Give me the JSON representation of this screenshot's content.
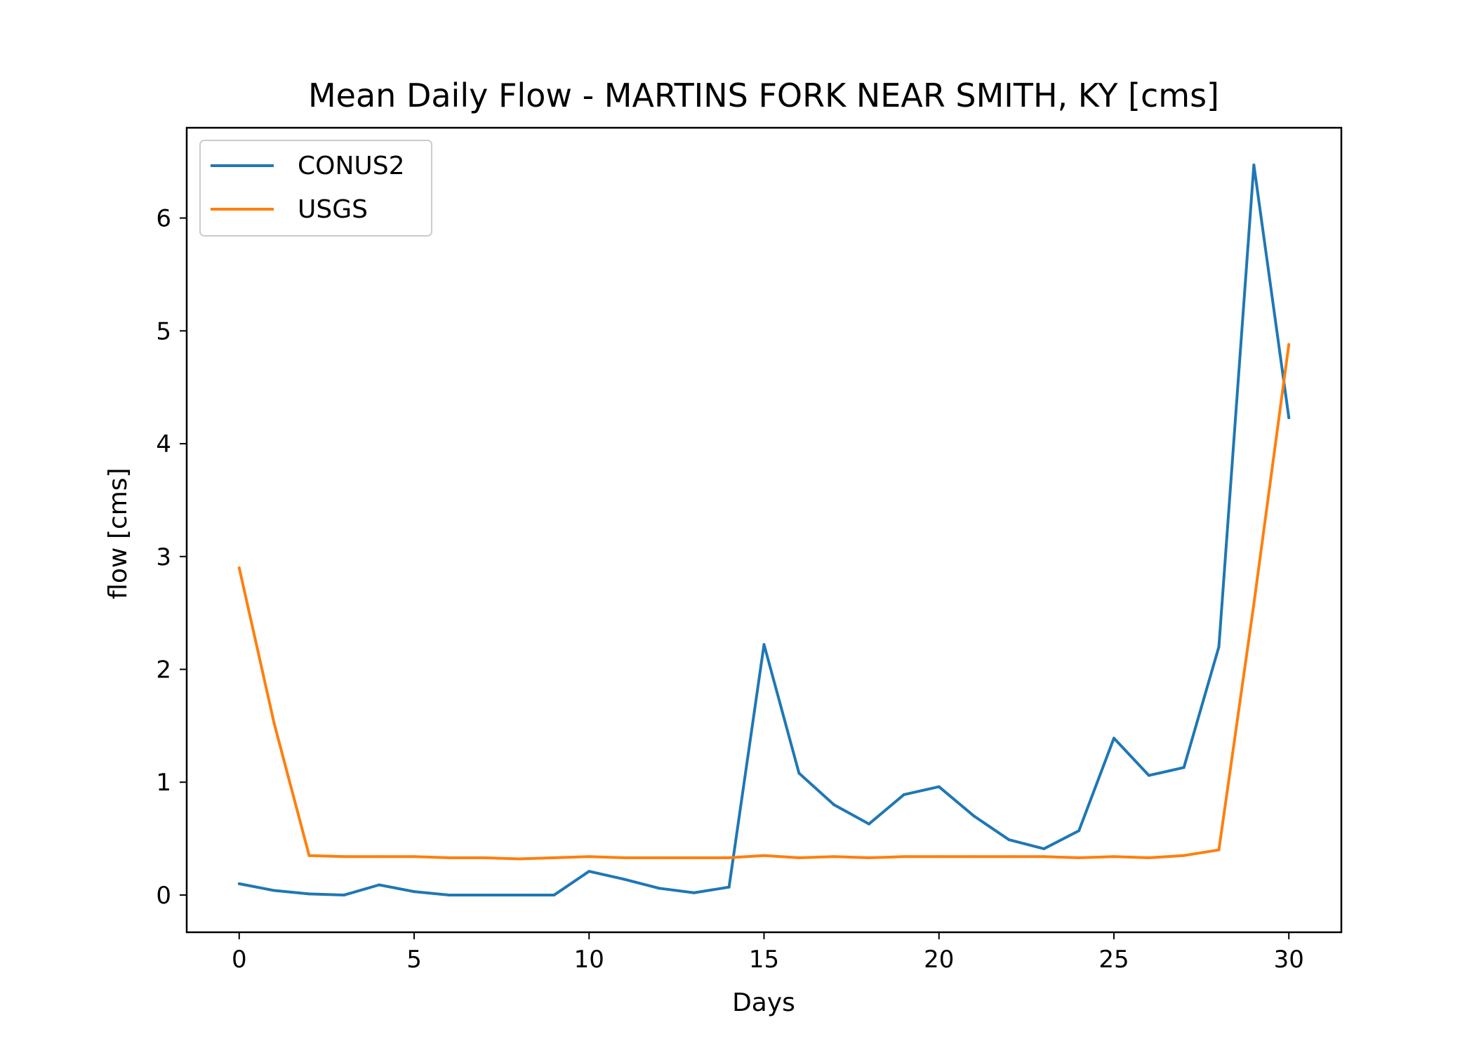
{
  "chart_data": {
    "type": "line",
    "title": "Mean Daily Flow - MARTINS FORK NEAR SMITH, KY [cms]",
    "xlabel": "Days",
    "ylabel": "flow [cms]",
    "xlim": [
      -1.5,
      31.5
    ],
    "ylim": [
      -0.33,
      6.8
    ],
    "xticks": [
      0,
      5,
      10,
      15,
      20,
      25,
      30
    ],
    "yticks": [
      0,
      1,
      2,
      3,
      4,
      5,
      6
    ],
    "grid": false,
    "legend_position": "top-left",
    "x": [
      0,
      1,
      2,
      3,
      4,
      5,
      6,
      7,
      8,
      9,
      10,
      11,
      12,
      13,
      14,
      15,
      16,
      17,
      18,
      19,
      20,
      21,
      22,
      23,
      24,
      25,
      26,
      27,
      28,
      29,
      30
    ],
    "series": [
      {
        "name": "CONUS2",
        "color": "#1f77b4",
        "values": [
          0.1,
          0.04,
          0.01,
          0.0,
          0.09,
          0.03,
          0.0,
          0.0,
          0.0,
          0.0,
          0.21,
          0.14,
          0.06,
          0.02,
          0.07,
          2.22,
          1.08,
          0.8,
          0.63,
          0.89,
          0.96,
          0.7,
          0.49,
          0.41,
          0.57,
          1.39,
          1.06,
          1.13,
          2.2,
          6.47,
          4.23
        ]
      },
      {
        "name": "USGS",
        "color": "#ff7f0e",
        "values": [
          2.9,
          1.52,
          0.35,
          0.34,
          0.34,
          0.34,
          0.33,
          0.33,
          0.32,
          0.33,
          0.34,
          0.33,
          0.33,
          0.33,
          0.33,
          0.35,
          0.33,
          0.34,
          0.33,
          0.34,
          0.34,
          0.34,
          0.34,
          0.34,
          0.33,
          0.34,
          0.33,
          0.35,
          0.4,
          2.58,
          4.88
        ]
      }
    ]
  }
}
